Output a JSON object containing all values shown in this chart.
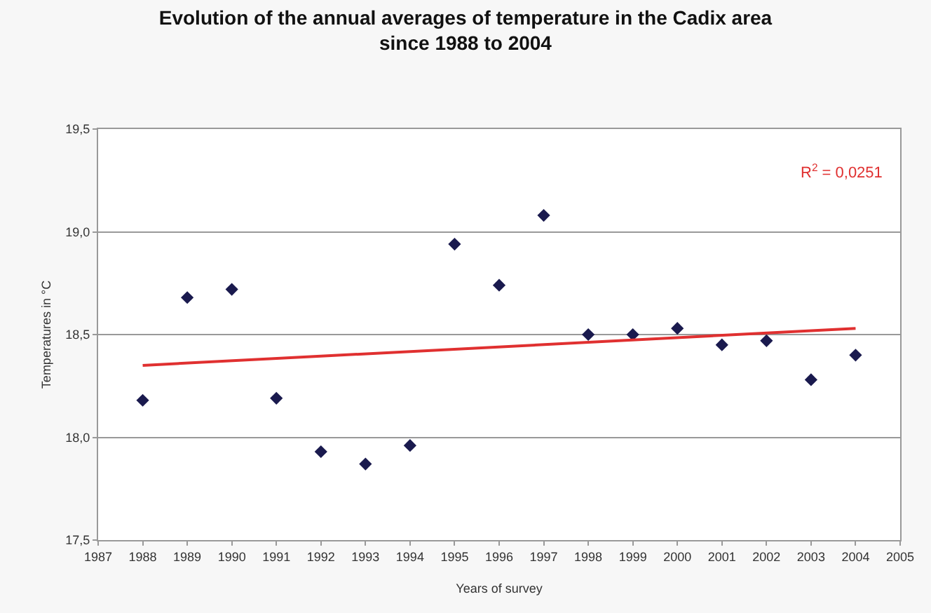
{
  "chart_data": {
    "type": "scatter",
    "title": "Evolution of the annual averages of temperature in the Cadix area\nsince 1988 to 2004",
    "xlabel": "Years of survey",
    "ylabel": "Temperatures in °C",
    "x": [
      1988,
      1989,
      1990,
      1991,
      1992,
      1993,
      1994,
      1995,
      1996,
      1997,
      1998,
      1999,
      2000,
      2001,
      2002,
      2003,
      2004
    ],
    "series": [
      {
        "color": "#1a1a4e",
        "marker": "diamond",
        "values": [
          18.18,
          18.68,
          18.72,
          18.19,
          17.93,
          17.87,
          17.96,
          18.94,
          18.74,
          19.08,
          18.5,
          18.5,
          18.53,
          18.45,
          18.47,
          18.28,
          18.4
        ]
      },
      {
        "type": "line",
        "color": "#e03030",
        "marker": "none",
        "line_style": "solid",
        "x": [
          1988,
          2004
        ],
        "values": [
          18.35,
          18.53
        ]
      }
    ],
    "xlim": [
      1987,
      2005
    ],
    "xticks": [
      1987,
      1988,
      1989,
      1990,
      1991,
      1992,
      1993,
      1994,
      1995,
      1996,
      1997,
      1998,
      1999,
      2000,
      2001,
      2002,
      2003,
      2004,
      2005
    ],
    "ylim": [
      17.5,
      19.5
    ],
    "yticks": [
      {
        "value": 17.5,
        "label": "17,5"
      },
      {
        "value": 18.0,
        "label": "18,0"
      },
      {
        "value": 18.5,
        "label": "18,5"
      },
      {
        "value": 19.0,
        "label": "19,0"
      },
      {
        "value": 19.5,
        "label": "19,5"
      }
    ],
    "grid": "y",
    "annotations": [
      "R$^{2}$ = 0,0251"
    ]
  }
}
